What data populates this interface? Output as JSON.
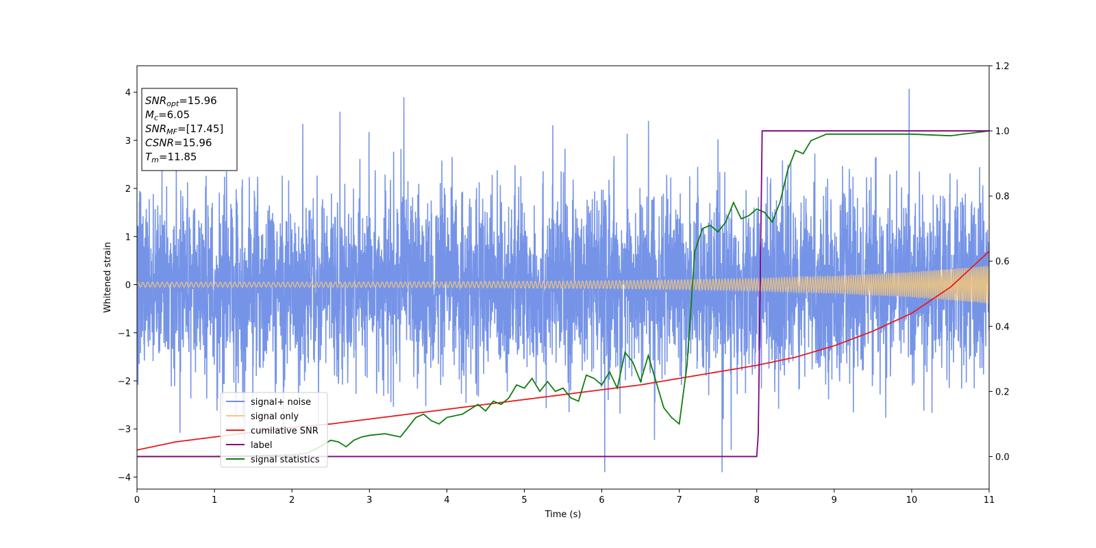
{
  "chart_data": {
    "type": "line",
    "xlabel": "Time (s)",
    "ylabel_left": "Whitened strain",
    "ylabel_right": "",
    "xlim": [
      0,
      11
    ],
    "ylim_left": [
      -4.25,
      4.55
    ],
    "ylim_right": [
      -0.1,
      1.2
    ],
    "xticks": [
      0,
      1,
      2,
      3,
      4,
      5,
      6,
      7,
      8,
      9,
      10,
      11
    ],
    "yticks_left": [
      -4,
      -3,
      -2,
      -1,
      0,
      1,
      2,
      3,
      4
    ],
    "yticks_right": [
      0.0,
      0.2,
      0.4,
      0.6,
      0.8,
      1.0,
      1.2
    ],
    "grid": false,
    "legend_position": "lower-left",
    "info_box": {
      "lines": [
        {
          "main": "SNR",
          "sub": "opt",
          "rest": "=15.96"
        },
        {
          "main": "M",
          "sub": "c",
          "rest": "=6.05"
        },
        {
          "main": "SNR",
          "sub": "MF",
          "rest": "=[17.45]"
        },
        {
          "main": "CSNR",
          "sub": "",
          "rest": "=15.96"
        },
        {
          "main": "T",
          "sub": "m",
          "rest": "=11.85"
        }
      ]
    },
    "series": [
      {
        "name": "signal+ noise",
        "axis": "left",
        "color": "#6f8ee6",
        "description_type": "noise",
        "noise_sigma": 1.0,
        "x_range": [
          0,
          11
        ]
      },
      {
        "name": "signal only",
        "axis": "left",
        "color": "#f5c77a",
        "description_type": "chirp",
        "envelope": {
          "x": [
            0,
            2,
            4,
            6,
            7,
            8,
            9,
            10,
            11
          ],
          "y": [
            0.05,
            0.05,
            0.06,
            0.08,
            0.1,
            0.13,
            0.18,
            0.26,
            0.39
          ]
        }
      },
      {
        "name": "cumilative SNR",
        "axis": "right",
        "color": "#e8191b",
        "x": [
          0,
          0.5,
          1,
          1.5,
          2,
          2.5,
          3,
          3.5,
          4,
          4.5,
          5,
          5.5,
          6,
          6.5,
          7,
          7.5,
          8,
          8.5,
          9,
          9.5,
          10,
          10.5,
          11
        ],
        "y": [
          0.02,
          0.045,
          0.06,
          0.075,
          0.09,
          0.1,
          0.115,
          0.13,
          0.145,
          0.16,
          0.175,
          0.19,
          0.205,
          0.22,
          0.24,
          0.26,
          0.28,
          0.305,
          0.34,
          0.385,
          0.44,
          0.52,
          0.63
        ]
      },
      {
        "name": "label",
        "axis": "right",
        "color": "#800080",
        "x": [
          0,
          8.0,
          8.02,
          8.07,
          11
        ],
        "y": [
          0.0,
          0.0,
          0.07,
          1.0,
          1.0
        ]
      },
      {
        "name": "signal statistics",
        "axis": "right",
        "color": "#0d7d0d",
        "x": [
          0,
          1.0,
          2.0,
          2.2,
          2.4,
          2.5,
          2.6,
          2.7,
          2.8,
          2.9,
          3.0,
          3.2,
          3.4,
          3.5,
          3.6,
          3.7,
          3.8,
          3.9,
          4.0,
          4.2,
          4.4,
          4.5,
          4.6,
          4.7,
          4.8,
          4.9,
          5.0,
          5.1,
          5.2,
          5.3,
          5.4,
          5.5,
          5.6,
          5.7,
          5.8,
          5.9,
          6.0,
          6.1,
          6.2,
          6.3,
          6.4,
          6.5,
          6.6,
          6.7,
          6.8,
          6.9,
          7.0,
          7.1,
          7.2,
          7.3,
          7.4,
          7.5,
          7.6,
          7.7,
          7.8,
          7.9,
          8.0,
          8.1,
          8.2,
          8.3,
          8.4,
          8.5,
          8.6,
          8.7,
          8.8,
          8.9,
          9.0,
          9.2,
          9.5,
          10.0,
          10.5,
          11.0
        ],
        "y": [
          0.0,
          0.0,
          0.005,
          0.01,
          0.035,
          0.05,
          0.045,
          0.03,
          0.05,
          0.06,
          0.065,
          0.07,
          0.06,
          0.09,
          0.12,
          0.13,
          0.11,
          0.1,
          0.12,
          0.13,
          0.16,
          0.14,
          0.17,
          0.16,
          0.18,
          0.22,
          0.21,
          0.24,
          0.2,
          0.23,
          0.2,
          0.21,
          0.18,
          0.17,
          0.25,
          0.24,
          0.22,
          0.26,
          0.21,
          0.32,
          0.29,
          0.23,
          0.31,
          0.23,
          0.15,
          0.12,
          0.1,
          0.28,
          0.63,
          0.7,
          0.71,
          0.69,
          0.72,
          0.78,
          0.73,
          0.74,
          0.76,
          0.75,
          0.72,
          0.78,
          0.88,
          0.94,
          0.93,
          0.97,
          0.98,
          0.99,
          0.99,
          0.99,
          0.99,
          0.99,
          0.985,
          1.0
        ]
      }
    ]
  }
}
